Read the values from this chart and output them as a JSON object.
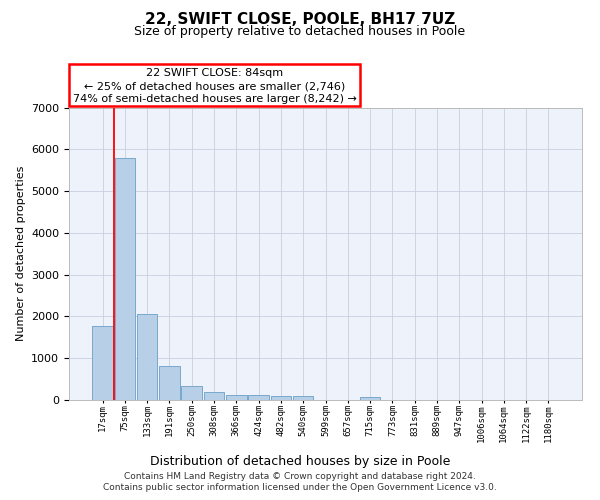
{
  "title1": "22, SWIFT CLOSE, POOLE, BH17 7UZ",
  "title2": "Size of property relative to detached houses in Poole",
  "xlabel": "Distribution of detached houses by size in Poole",
  "ylabel": "Number of detached properties",
  "categories": [
    "17sqm",
    "75sqm",
    "133sqm",
    "191sqm",
    "250sqm",
    "308sqm",
    "366sqm",
    "424sqm",
    "482sqm",
    "540sqm",
    "599sqm",
    "657sqm",
    "715sqm",
    "773sqm",
    "831sqm",
    "889sqm",
    "947sqm",
    "1006sqm",
    "1064sqm",
    "1122sqm",
    "1180sqm"
  ],
  "values": [
    1780,
    5800,
    2060,
    820,
    340,
    190,
    120,
    110,
    95,
    85,
    0,
    0,
    80,
    0,
    0,
    0,
    0,
    0,
    0,
    0,
    0
  ],
  "bar_color": "#b8cfe8",
  "bar_edge_color": "#6a9fc8",
  "ylim": [
    0,
    7000
  ],
  "yticks": [
    0,
    1000,
    2000,
    3000,
    4000,
    5000,
    6000,
    7000
  ],
  "red_line_x": 0.5,
  "annotation_title": "22 SWIFT CLOSE: 84sqm",
  "annotation_line1": "← 25% of detached houses are smaller (2,746)",
  "annotation_line2": "74% of semi-detached houses are larger (8,242) →",
  "footer1": "Contains HM Land Registry data © Crown copyright and database right 2024.",
  "footer2": "Contains public sector information licensed under the Open Government Licence v3.0.",
  "bg_color": "#eef2fa",
  "grid_color": "#c8cfe0"
}
